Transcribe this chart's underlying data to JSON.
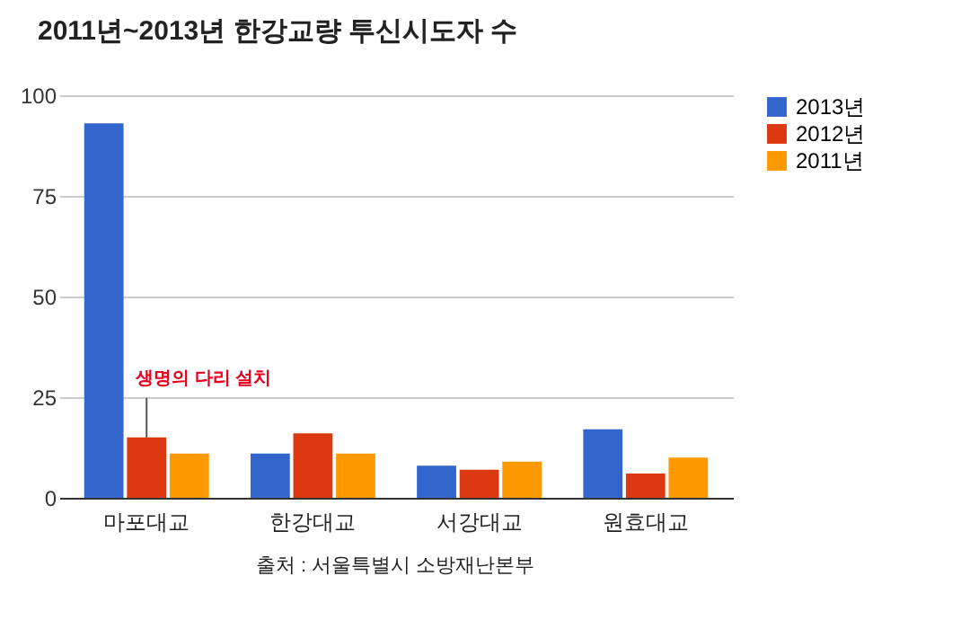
{
  "chart_data": {
    "type": "bar",
    "title": "2011년~2013년 한강교량 투신시도자 수",
    "categories": [
      "마포대교",
      "한강대교",
      "서강대교",
      "원효대교"
    ],
    "series": [
      {
        "name": "2013년",
        "color": "#3366cc",
        "values": [
          93,
          11,
          8,
          17
        ]
      },
      {
        "name": "2012년",
        "color": "#dc3912",
        "values": [
          15,
          16,
          7,
          6
        ]
      },
      {
        "name": "2011년",
        "color": "#ff9900",
        "values": [
          11,
          11,
          9,
          10
        ]
      }
    ],
    "ylim": [
      0,
      100
    ],
    "yticks": [
      0,
      25,
      50,
      75,
      100
    ],
    "grid": "y",
    "legend": "top right",
    "annotations": [
      {
        "text": "생명의 다리 설치",
        "x": "마포대교",
        "y": 15
      },
      "출처 : 서울특별시 소방재난본부"
    ]
  }
}
